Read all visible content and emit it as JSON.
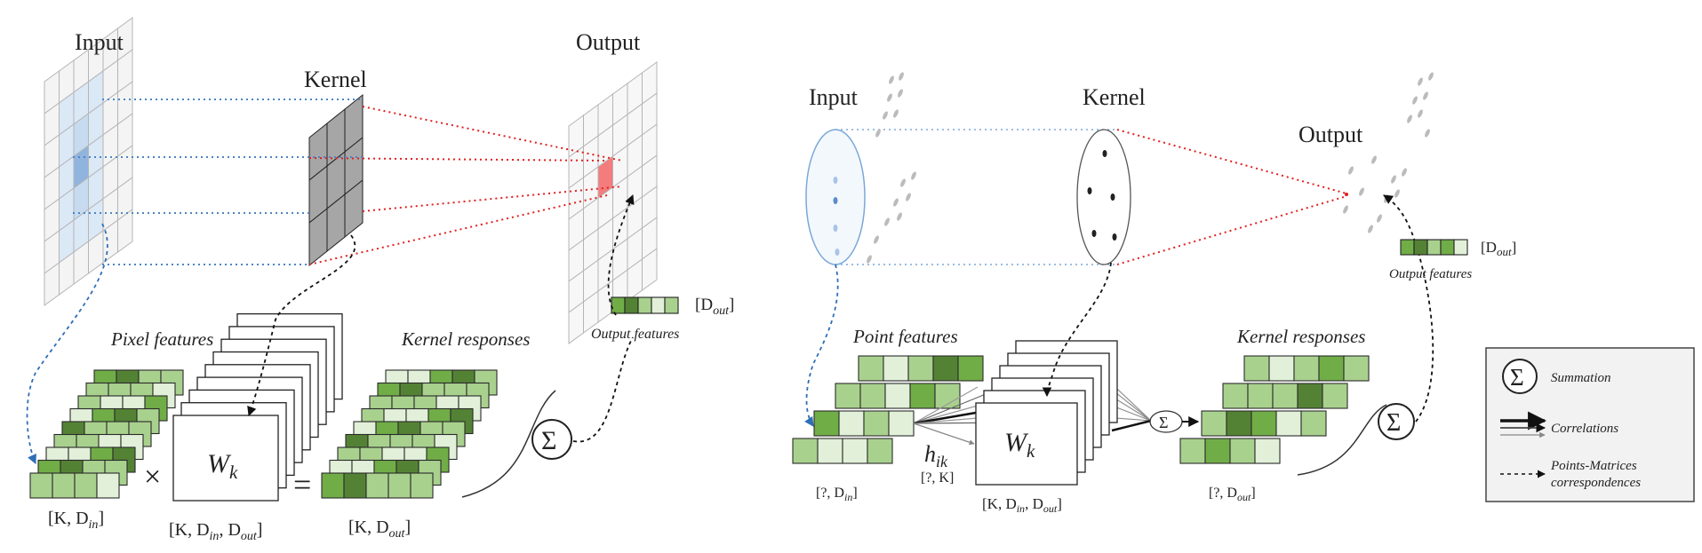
{
  "left": {
    "input_label": "Input",
    "kernel_label": "Kernel",
    "output_label": "Output",
    "pixel_features_label": "Pixel features",
    "kernel_responses_label": "Kernel responses",
    "output_features_label": "Output features",
    "weight_label": "W",
    "weight_subscript": "k",
    "times_symbol": "×",
    "equals_symbol": "=",
    "sum_symbol": "Σ",
    "dim_features": "[K, D",
    "dim_features_sub": "in",
    "dim_weights": "[K, D",
    "dim_weights_sub1": "in",
    "dim_weights_mid": ", D",
    "dim_weights_sub2": "out",
    "dim_responses": "[K, D",
    "dim_responses_sub": "out",
    "dim_output": "[D",
    "dim_output_sub": "out",
    "bracket_close": "]"
  },
  "right": {
    "input_label": "Input",
    "kernel_label": "Kernel",
    "output_label": "Output",
    "point_features_label": "Point features",
    "kernel_responses_label": "Kernel responses",
    "output_features_label": "Output features",
    "weight_label": "W",
    "weight_subscript": "k",
    "sum_symbol": "Σ",
    "h_label": "h",
    "h_subscript": "ik",
    "h_dim": "[?, K]",
    "dim_features": "[?, D",
    "dim_features_sub": "in",
    "dim_weights": "[K, D",
    "dim_weights_sub1": "in",
    "dim_weights_mid": ", D",
    "dim_weights_sub2": "out",
    "dim_responses": "[?, D",
    "dim_responses_sub": "out",
    "dim_output": "[D",
    "dim_output_sub": "out",
    "bracket_close": "]"
  },
  "legend": {
    "summation_label": "Summation",
    "correlations_label": "Correlations",
    "correspondences_line1": "Points-Matrices",
    "correspondences_line2": "correspondences"
  },
  "colors": {
    "light_green": "#a9d18e",
    "pale_green": "#e2f0d9",
    "mid_green": "#70ad47",
    "dark_green": "#548235",
    "grid_blue_fill": "#dbe8f6",
    "grid_blue_dark": "#8fb4de",
    "kernel_gray": "#a6a6a6",
    "output_red": "#f47c7c",
    "dotted_blue": "#4a86c8",
    "dotted_red": "#e02020"
  }
}
